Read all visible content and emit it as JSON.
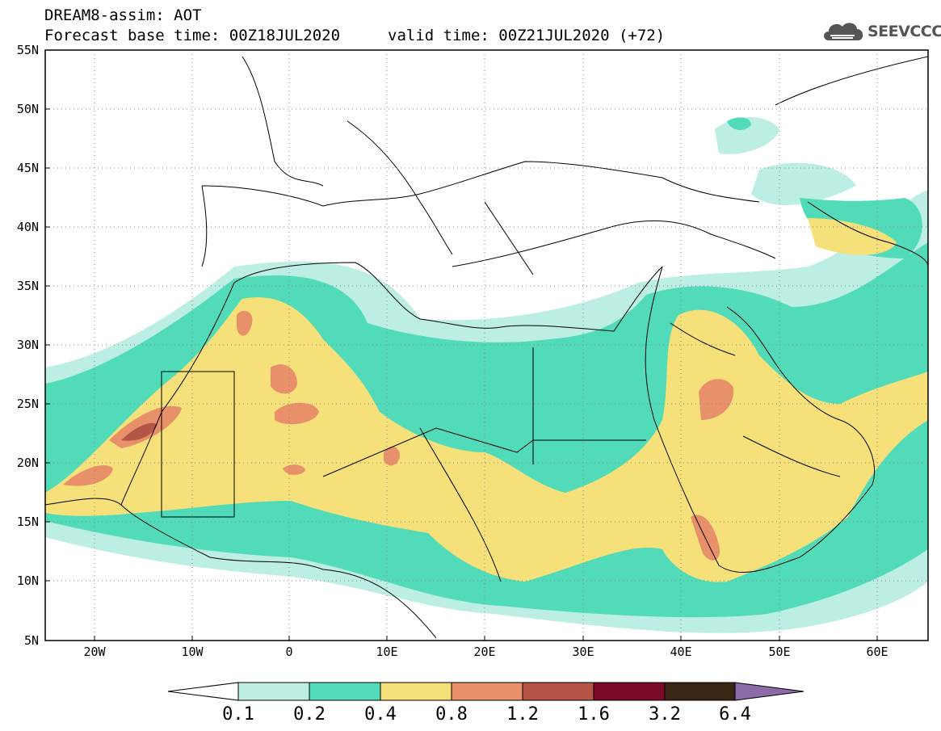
{
  "header": {
    "line1": "DREAM8-assim: AOT",
    "line2": "Forecast base time: 00Z18JUL2020",
    "valid": "valid time: 00Z21JUL2020 (+72)"
  },
  "logo": {
    "text": "SEEVCCC",
    "icon": "cloud-icon"
  },
  "map": {
    "projection": "lat-lon",
    "lon_range": [
      -25,
      65
    ],
    "lat_range": [
      5,
      55
    ],
    "lat_ticks": [
      "55N",
      "50N",
      "45N",
      "40N",
      "35N",
      "30N",
      "25N",
      "20N",
      "15N",
      "10N",
      "5N"
    ],
    "lon_ticks": [
      "20W",
      "10W",
      "0",
      "10E",
      "20E",
      "30E",
      "40E",
      "50E",
      "60E"
    ],
    "grid": "dotted"
  },
  "colorbar": {
    "labels": [
      "0.1",
      "0.2",
      "0.4",
      "0.8",
      "1.2",
      "1.6",
      "3.2",
      "6.4"
    ],
    "colors": [
      "#ffffff",
      "#bdeee4",
      "#52dbb8",
      "#f6e07a",
      "#e8906a",
      "#b55545",
      "#7a0a28",
      "#3b2614",
      "#8f6aa8"
    ]
  }
}
